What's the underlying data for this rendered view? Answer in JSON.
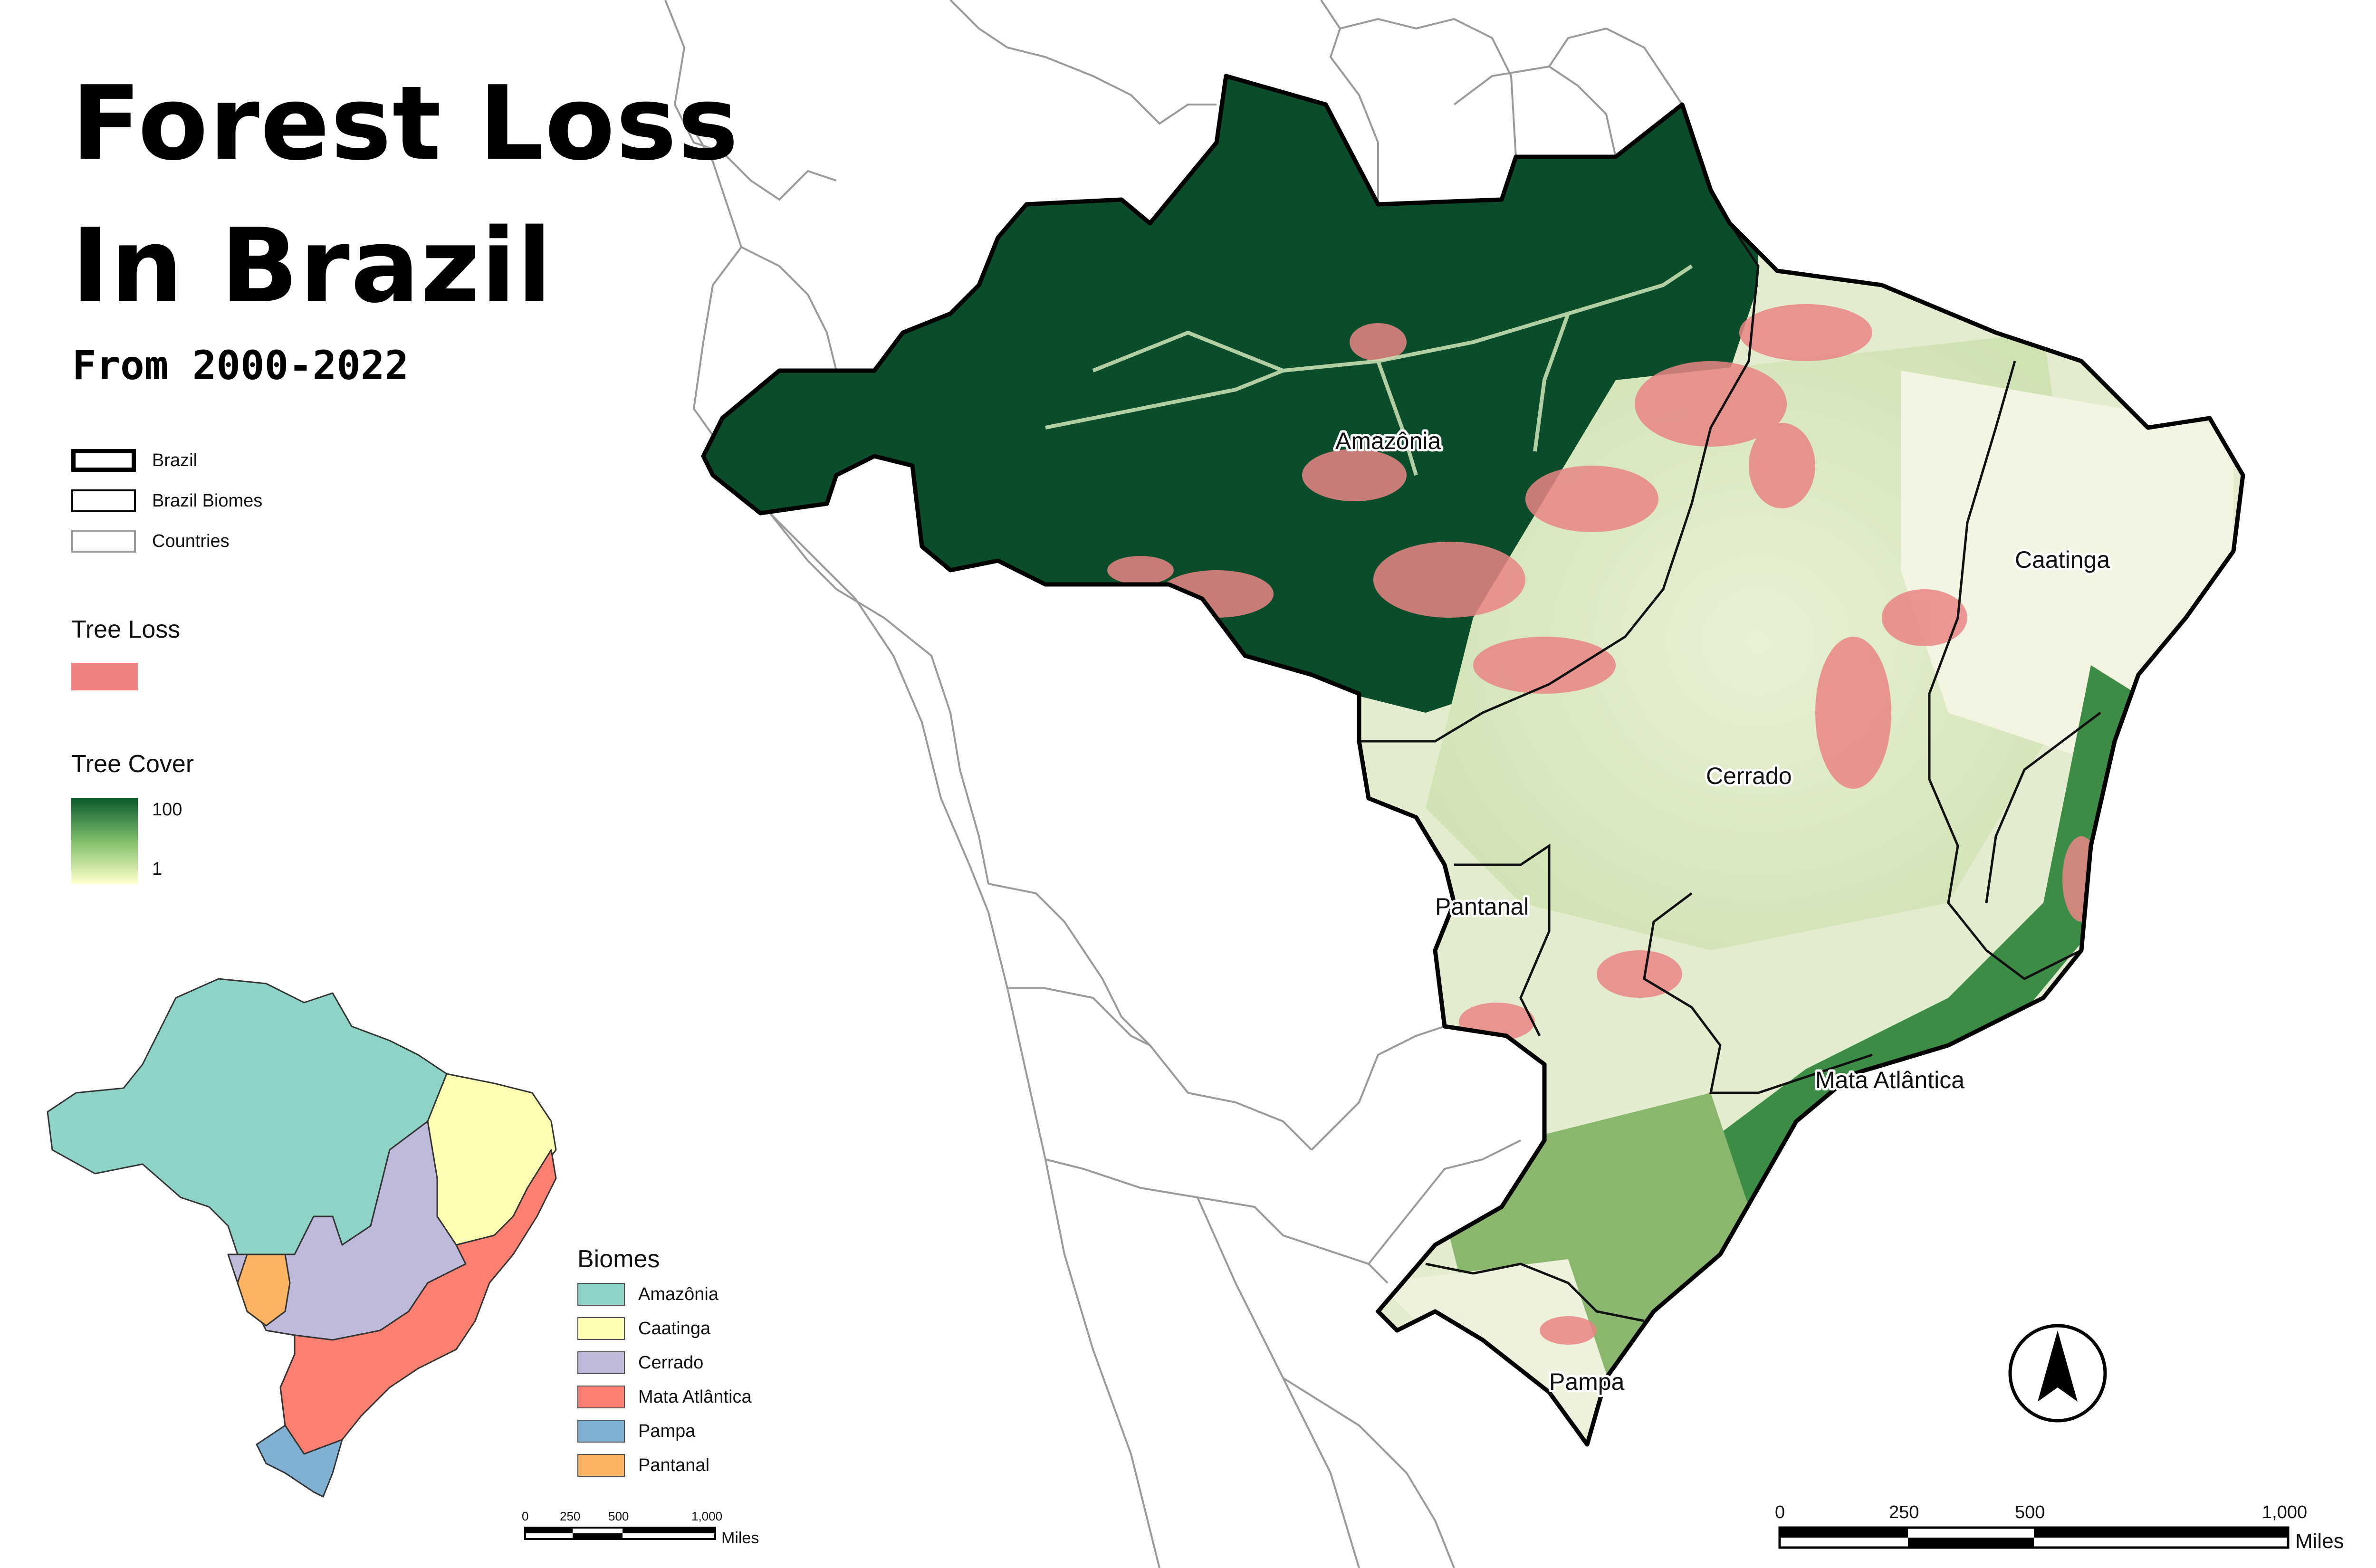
{
  "title_line1": "Forest Loss",
  "title_line2": "In Brazil",
  "subtitle": "From 2000-2022",
  "legend": {
    "boundaries": [
      {
        "label": "Brazil",
        "style": "thick-black"
      },
      {
        "label": "Brazil Biomes",
        "style": "thin-black"
      },
      {
        "label": "Countries",
        "style": "thin-gray"
      }
    ],
    "tree_loss_title": "Tree Loss",
    "tree_loss_color": "#f08080",
    "tree_cover_title": "Tree Cover",
    "tree_cover_max": "100",
    "tree_cover_min": "1",
    "tree_cover_colors": [
      "#0b5a2e",
      "#ffffcc"
    ]
  },
  "map_labels": {
    "amazonia": "Amazônia",
    "caatinga": "Caatinga",
    "cerrado": "Cerrado",
    "pantanal": "Pantanal",
    "mata_atlantica": "Mata Atlântica",
    "pampa": "Pampa"
  },
  "biomes_legend": {
    "title": "Biomes",
    "items": [
      {
        "label": "Amazônia",
        "color": "#8dd3c7"
      },
      {
        "label": "Caatinga",
        "color": "#ffffb3"
      },
      {
        "label": "Cerrado",
        "color": "#bebada"
      },
      {
        "label": "Mata Atlântica",
        "color": "#fb8072"
      },
      {
        "label": "Pampa",
        "color": "#80b1d3"
      },
      {
        "label": "Pantanal",
        "color": "#fdb462"
      }
    ]
  },
  "scale_small": {
    "ticks": [
      "0",
      "250",
      "500",
      "1,000"
    ],
    "unit": "Miles"
  },
  "scale_large": {
    "ticks": [
      "0",
      "250",
      "500",
      "1,000"
    ],
    "unit": "Miles"
  },
  "north_arrow": "north-arrow-icon"
}
